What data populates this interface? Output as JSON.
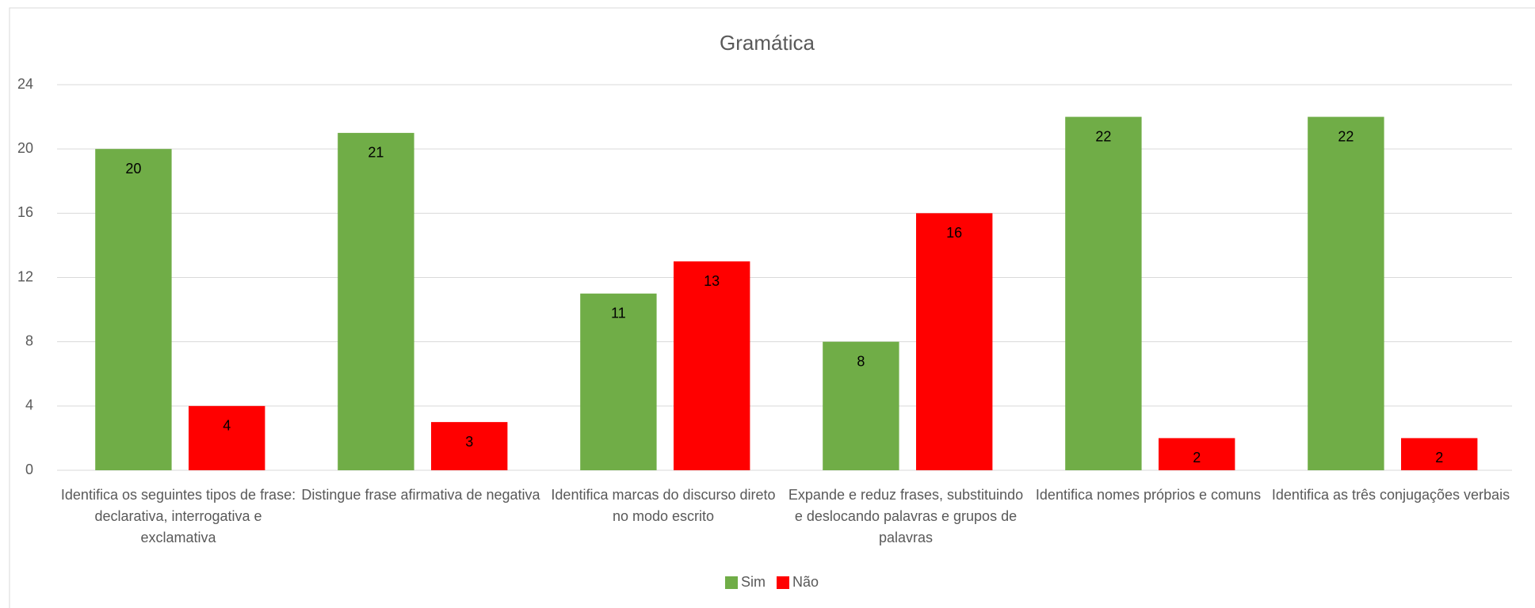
{
  "chart_data": {
    "type": "bar",
    "title": "Gramática",
    "categories": [
      "Identifica os seguintes tipos de frase: declarativa, interrogativa e exclamativa",
      "Distingue frase afirmativa de negativa",
      "Identifica marcas do discurso direto no modo escrito",
      "Expande e reduz frases, substituindo e deslocando palavras e grupos de palavras",
      "Identifica nomes próprios e comuns",
      "Identifica as três conjugações verbais"
    ],
    "series": [
      {
        "name": "Sim",
        "color": "#70ad47",
        "values": [
          20,
          21,
          11,
          8,
          22,
          22
        ]
      },
      {
        "name": "Não",
        "color": "#ff0000",
        "values": [
          4,
          3,
          13,
          16,
          2,
          2
        ]
      }
    ],
    "ylim": [
      0,
      24
    ],
    "yticks": [
      0,
      4,
      8,
      12,
      16,
      20,
      24
    ],
    "grid": true,
    "legend": "bottom"
  }
}
